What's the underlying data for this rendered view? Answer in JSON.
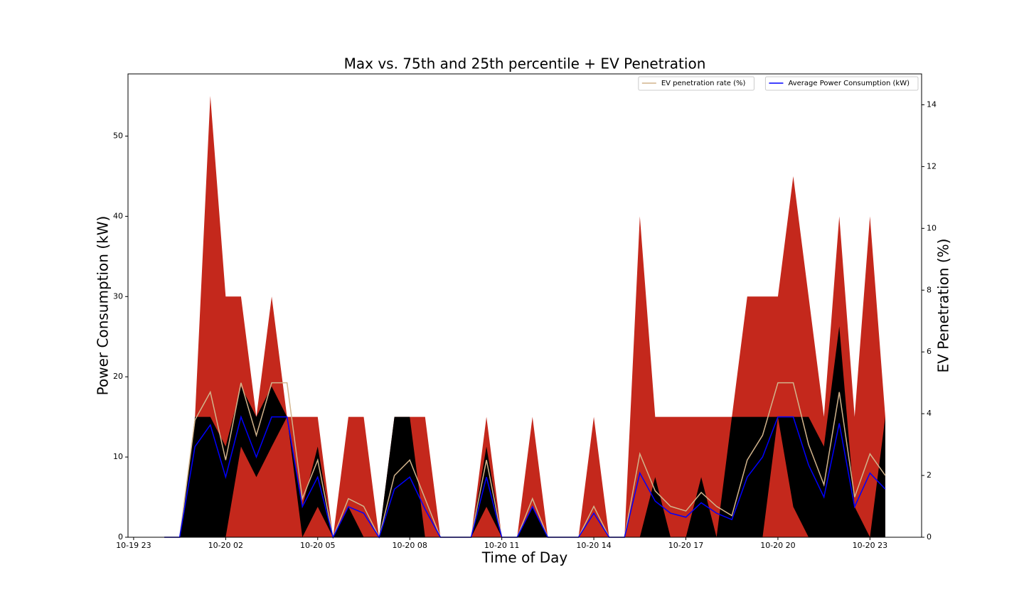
{
  "chart_data": {
    "type": "area-line",
    "title": "Max vs. 75th and 25th percentile + EV Penetration",
    "xlabel": "Time of Day",
    "ylabel": "Power Consumption (kW)",
    "y2label": "EV Penetration (%)",
    "x": [
      "10-20 00:00",
      "10-20 00:30",
      "10-20 01:00",
      "10-20 01:30",
      "10-20 02:00",
      "10-20 02:30",
      "10-20 03:00",
      "10-20 03:30",
      "10-20 04:00",
      "10-20 04:30",
      "10-20 05:00",
      "10-20 05:30",
      "10-20 06:00",
      "10-20 06:30",
      "10-20 07:00",
      "10-20 07:30",
      "10-20 08:00",
      "10-20 08:30",
      "10-20 09:00",
      "10-20 09:30",
      "10-20 10:00",
      "10-20 10:30",
      "10-20 11:00",
      "10-20 11:30",
      "10-20 12:00",
      "10-20 12:30",
      "10-20 13:00",
      "10-20 13:30",
      "10-20 14:00",
      "10-20 14:30",
      "10-20 15:00",
      "10-20 15:30",
      "10-20 16:00",
      "10-20 16:30",
      "10-20 17:00",
      "10-20 17:30",
      "10-20 18:00",
      "10-20 18:30",
      "10-20 19:00",
      "10-20 19:30",
      "10-20 20:00",
      "10-20 20:30",
      "10-20 21:00",
      "10-20 21:30",
      "10-20 22:00",
      "10-20 22:30",
      "10-20 23:00",
      "10-20 23:30"
    ],
    "xlim": [
      "10-19 22:49",
      "10-21 00:41"
    ],
    "xticks": [
      {
        "value": "10-19 23:00",
        "label": "10-19 23"
      },
      {
        "value": "10-20 02:00",
        "label": "10-20 02"
      },
      {
        "value": "10-20 05:00",
        "label": "10-20 05"
      },
      {
        "value": "10-20 08:00",
        "label": "10-20 08"
      },
      {
        "value": "10-20 11:00",
        "label": "10-20 11"
      },
      {
        "value": "10-20 14:00",
        "label": "10-20 14"
      },
      {
        "value": "10-20 17:00",
        "label": "10-20 17"
      },
      {
        "value": "10-20 20:00",
        "label": "10-20 20"
      },
      {
        "value": "10-20 23:00",
        "label": "10-20 23"
      }
    ],
    "ylim": [
      0,
      57.75
    ],
    "yticks": [
      0,
      10,
      20,
      30,
      40,
      50
    ],
    "y2lim": [
      0,
      15
    ],
    "y2ticks": [
      0,
      2,
      4,
      6,
      8,
      10,
      12,
      14
    ],
    "legend": "upper right",
    "series": [
      {
        "style": "area",
        "color": "#c4281c",
        "values": [
          0,
          0,
          15,
          55,
          30,
          30,
          15,
          30,
          15,
          15,
          15,
          0,
          15,
          15,
          0,
          15,
          15,
          15,
          0,
          0,
          0,
          15,
          0,
          0,
          15,
          0,
          0,
          0,
          15,
          0,
          0,
          40,
          15,
          15,
          15,
          15,
          15,
          15,
          30,
          30,
          30,
          45,
          30,
          15,
          40,
          15,
          40,
          15
        ]
      },
      {
        "style": "area",
        "color": "#000000",
        "values": [
          0,
          0,
          15,
          15,
          11.3,
          18.8,
          15,
          18.8,
          15,
          3.8,
          11.3,
          0,
          3.8,
          0,
          0,
          15,
          15,
          0,
          0,
          0,
          0,
          11.3,
          0,
          0,
          3.8,
          0,
          0,
          0,
          0,
          0,
          0,
          0,
          7.5,
          0,
          0,
          7.5,
          0,
          15,
          15,
          15,
          15,
          15,
          15,
          11.3,
          26.3,
          3.8,
          0,
          15
        ]
      },
      {
        "style": "area",
        "color": "#c4281c",
        "values": [
          0,
          0,
          0,
          0,
          0,
          11.3,
          7.5,
          11.3,
          15,
          0,
          3.8,
          0,
          0,
          0,
          0,
          0,
          0,
          0,
          0,
          0,
          0,
          3.8,
          0,
          0,
          0,
          0,
          0,
          0,
          0,
          0,
          0,
          0,
          0,
          0,
          0,
          0,
          0,
          0,
          0,
          0,
          15,
          3.8,
          0,
          0,
          0,
          0,
          0,
          0
        ]
      },
      {
        "style": "line",
        "name": "EV penetration rate (%)",
        "color": "#d2b48c",
        "axis": "y2",
        "values": [
          0,
          0,
          3.8,
          4.7,
          2.5,
          5,
          3.3,
          5,
          5,
          1.25,
          2.5,
          0,
          1.25,
          1,
          0,
          2,
          2.5,
          1.25,
          0,
          0,
          0,
          2.5,
          0,
          0,
          1.25,
          0,
          0,
          0,
          1,
          0,
          0,
          2.7,
          1.5,
          1,
          0.85,
          1.45,
          1,
          0.7,
          2.5,
          3.3,
          5,
          5,
          3,
          1.7,
          4.7,
          1.3,
          2.7,
          2
        ]
      },
      {
        "style": "line",
        "name": "Average Power Consumption (kW)",
        "color": "#0000ff",
        "values": [
          0,
          0,
          11.3,
          14,
          7.5,
          15,
          10,
          15,
          15,
          3.8,
          7.5,
          0,
          3.8,
          3,
          0,
          6,
          7.5,
          3.5,
          0,
          0,
          0,
          7.5,
          0,
          0,
          3.8,
          0,
          0,
          0,
          3,
          0,
          0,
          8,
          4.5,
          3,
          2.5,
          4.3,
          3,
          2.2,
          7.5,
          10,
          15,
          15,
          9,
          5,
          14.2,
          3.8,
          8,
          6
        ]
      }
    ]
  }
}
